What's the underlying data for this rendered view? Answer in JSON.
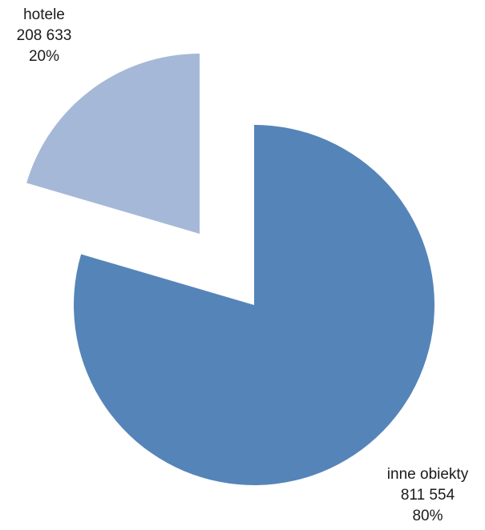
{
  "chart_data": {
    "type": "pie",
    "exploded": true,
    "slices": [
      {
        "label": "hotele",
        "value": 208633,
        "value_label": "208 633",
        "percent_label": "20%",
        "color": "#a5b8d8"
      },
      {
        "label": "inne obiekty",
        "value": 811554,
        "value_label": "811 554",
        "percent_label": "80%",
        "color": "#5584b8"
      }
    ]
  }
}
